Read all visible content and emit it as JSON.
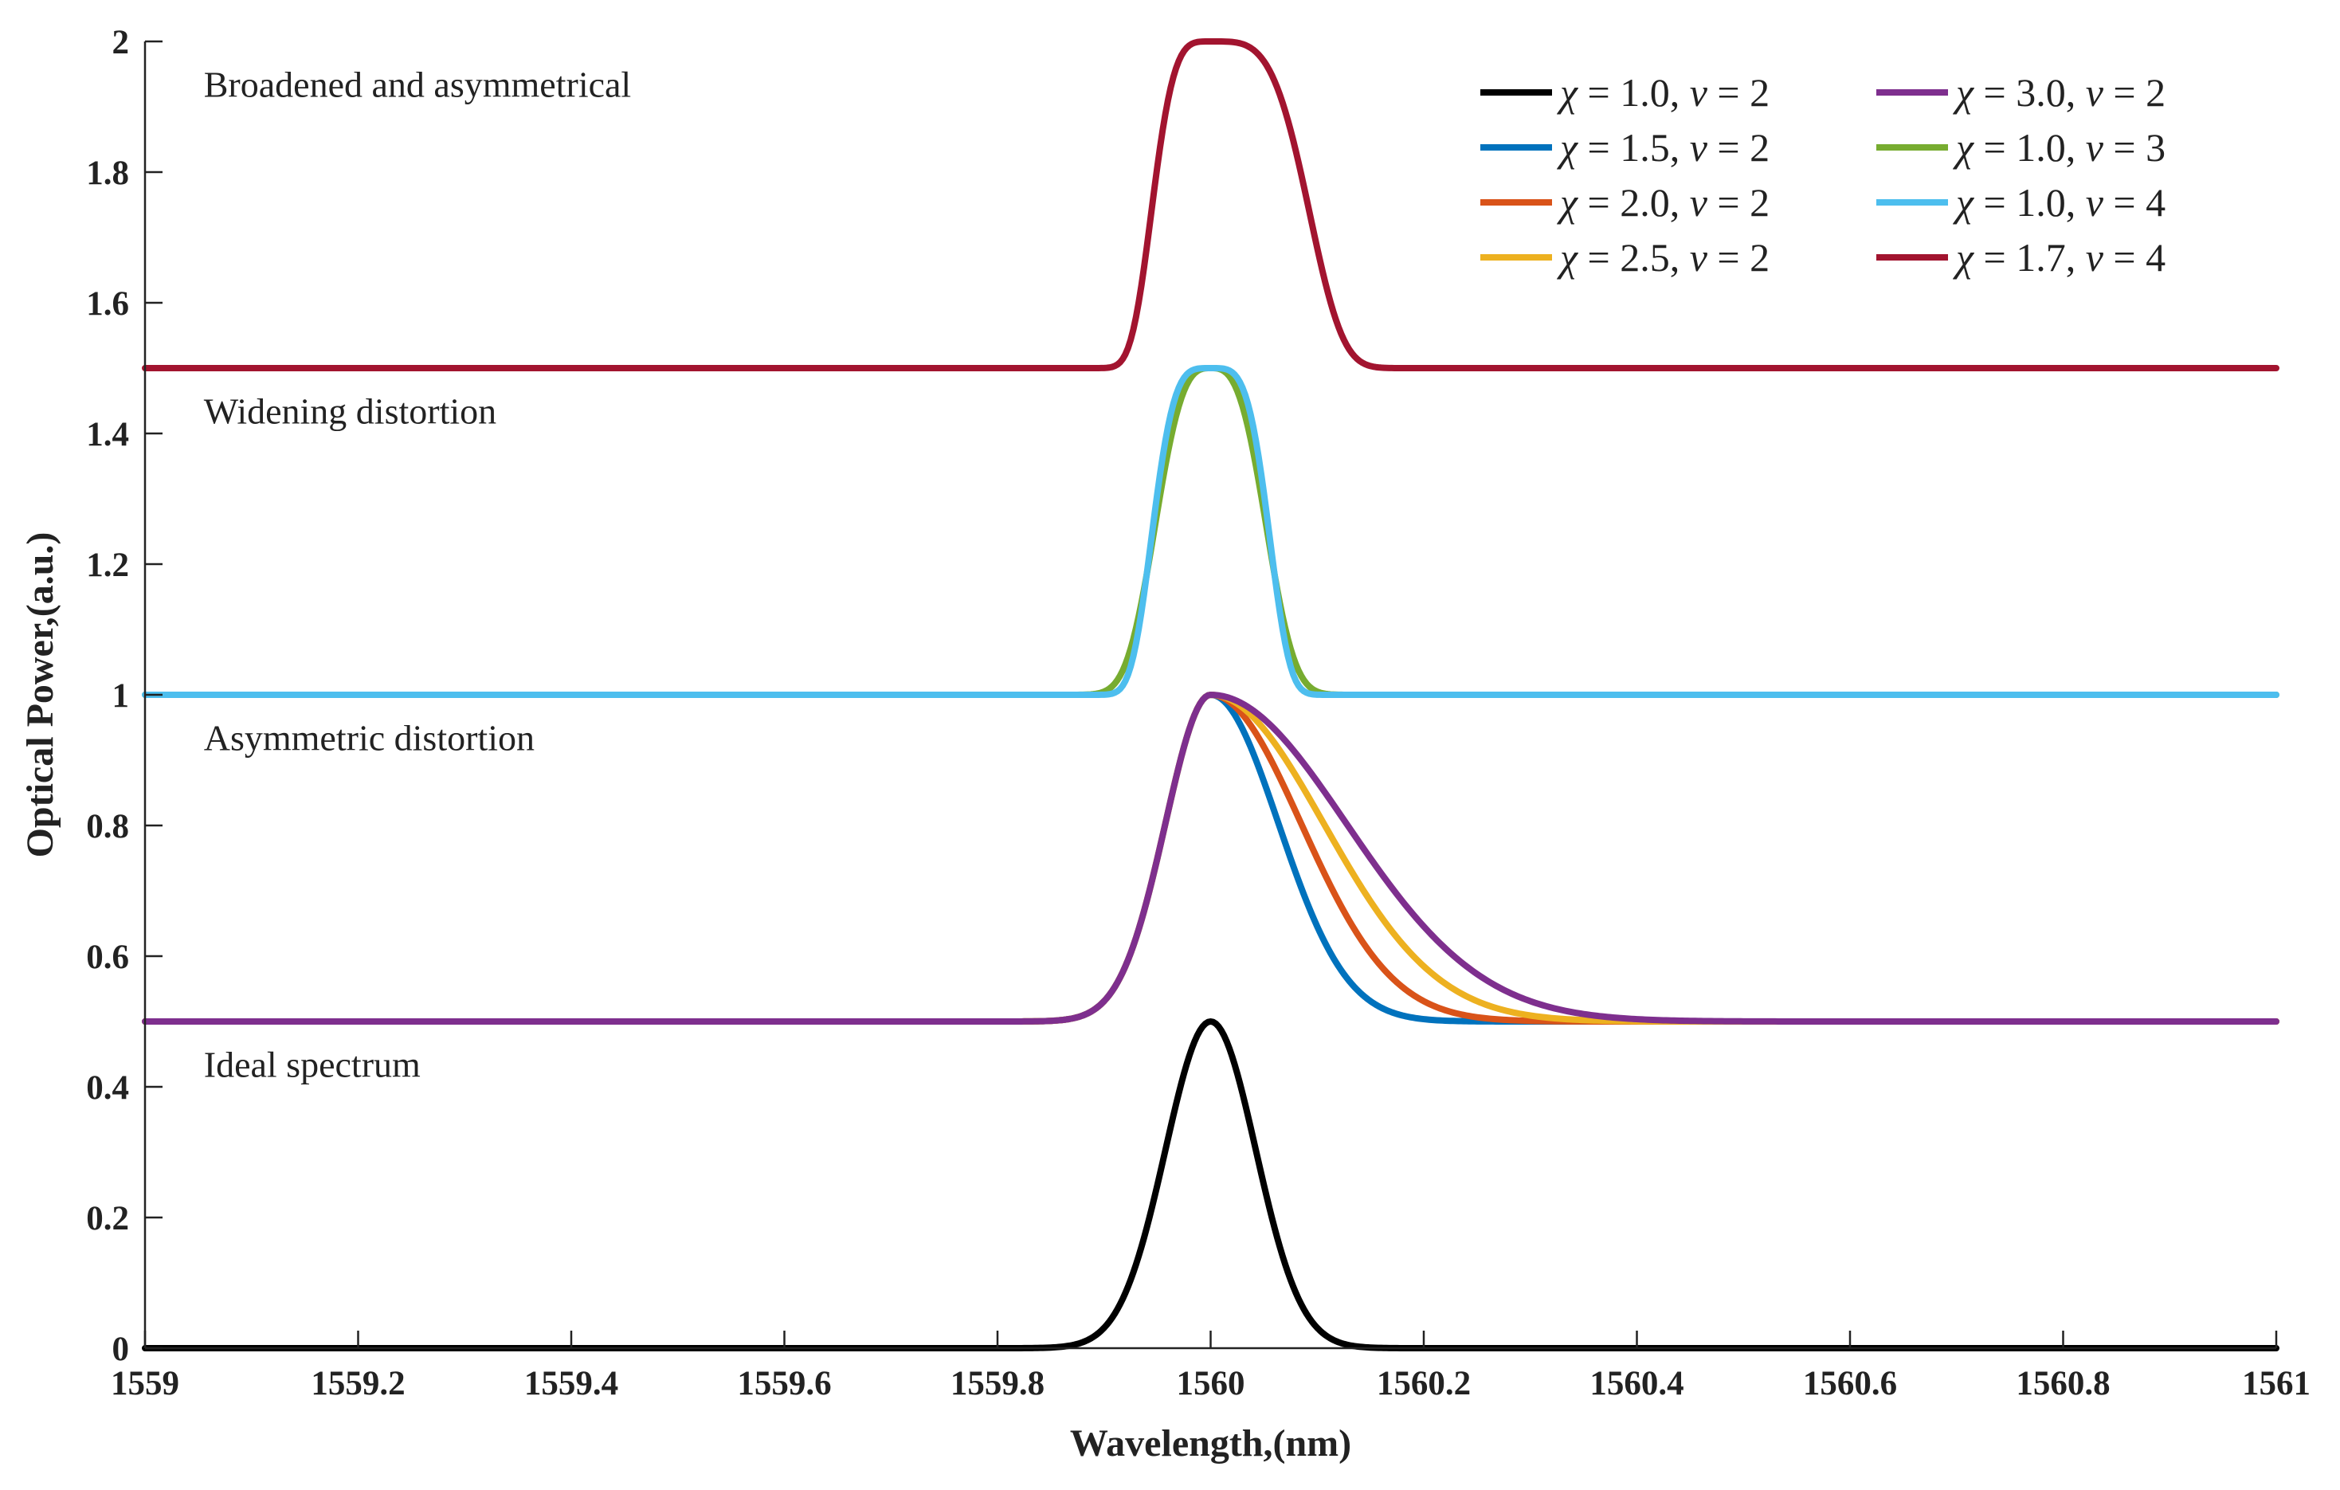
{
  "chart_data": {
    "type": "line",
    "xlabel": "Wavelength,(nm)",
    "ylabel": "Optical Power,(a.u.)",
    "xlim": [
      1559,
      1561
    ],
    "ylim": [
      0,
      2
    ],
    "x_ticks": [
      1559,
      1559.2,
      1559.4,
      1559.6,
      1559.8,
      1560,
      1560.2,
      1560.4,
      1560.6,
      1560.8,
      1561
    ],
    "x_tick_labels": [
      "1559",
      "1559.2",
      "1559.4",
      "1559.6",
      "1559.8",
      "1560",
      "1560.2",
      "1560.4",
      "1560.6",
      "1560.8",
      "1561"
    ],
    "y_ticks": [
      0,
      0.2,
      0.4,
      0.6,
      0.8,
      1,
      1.2,
      1.4,
      1.6,
      1.8,
      2
    ],
    "y_tick_labels": [
      "0",
      "0.2",
      "0.4",
      "0.6",
      "0.8",
      "1",
      "1.2",
      "1.4",
      "1.6",
      "1.8",
      "2"
    ],
    "grid": false,
    "legend_position": "top-right",
    "center_wavelength": 1560,
    "annotations": [
      {
        "text": "Broadened and asymmetrical",
        "at": [
          1559.1,
          1.93
        ]
      },
      {
        "text": "Widening distortion",
        "at": [
          1559.1,
          1.43
        ]
      },
      {
        "text": "Asymmetric distortion",
        "at": [
          1559.1,
          0.93
        ]
      },
      {
        "text": "Ideal spectrum",
        "at": [
          1559.1,
          0.43
        ]
      }
    ],
    "series": [
      {
        "name": "χ = 1.0, ν = 2",
        "chi": "1.0",
        "nu": "2",
        "color": "#000000",
        "baseline": 0,
        "peak": 0.5,
        "width_left": 0.06,
        "width_right": 0.06,
        "order": 2
      },
      {
        "name": "χ = 1.5, ν = 2",
        "chi": "1.5",
        "nu": "2",
        "color": "#0072BD",
        "baseline": 0.5,
        "peak": 0.5,
        "width_left": 0.06,
        "width_right": 0.09,
        "order": 2
      },
      {
        "name": "χ = 2.0, ν = 2",
        "chi": "2.0",
        "nu": "2",
        "color": "#D95319",
        "baseline": 0.5,
        "peak": 0.5,
        "width_left": 0.06,
        "width_right": 0.12,
        "order": 2
      },
      {
        "name": "χ = 2.5, ν = 2",
        "chi": "2.5",
        "nu": "2",
        "color": "#EDB120",
        "baseline": 0.5,
        "peak": 0.5,
        "width_left": 0.06,
        "width_right": 0.15,
        "order": 2
      },
      {
        "name": "χ = 3.0, ν = 2",
        "chi": "3.0",
        "nu": "2",
        "color": "#7E2F8E",
        "baseline": 0.5,
        "peak": 0.5,
        "width_left": 0.06,
        "width_right": 0.18,
        "order": 2
      },
      {
        "name": "χ = 1.0, ν = 3",
        "chi": "1.0",
        "nu": "3",
        "color": "#77AC30",
        "baseline": 1.0,
        "peak": 0.5,
        "width_left": 0.06,
        "width_right": 0.06,
        "order": 3
      },
      {
        "name": "χ = 1.0, ν = 4",
        "chi": "1.0",
        "nu": "4",
        "color": "#4DBEEE",
        "baseline": 1.0,
        "peak": 0.5,
        "width_left": 0.06,
        "width_right": 0.06,
        "order": 4
      },
      {
        "name": "χ = 1.7, ν = 4",
        "chi": "1.7",
        "nu": "4",
        "color": "#A2142F",
        "baseline": 1.5,
        "peak": 0.5,
        "width_left": 0.06,
        "width_right": 0.1,
        "order": 4
      }
    ]
  }
}
